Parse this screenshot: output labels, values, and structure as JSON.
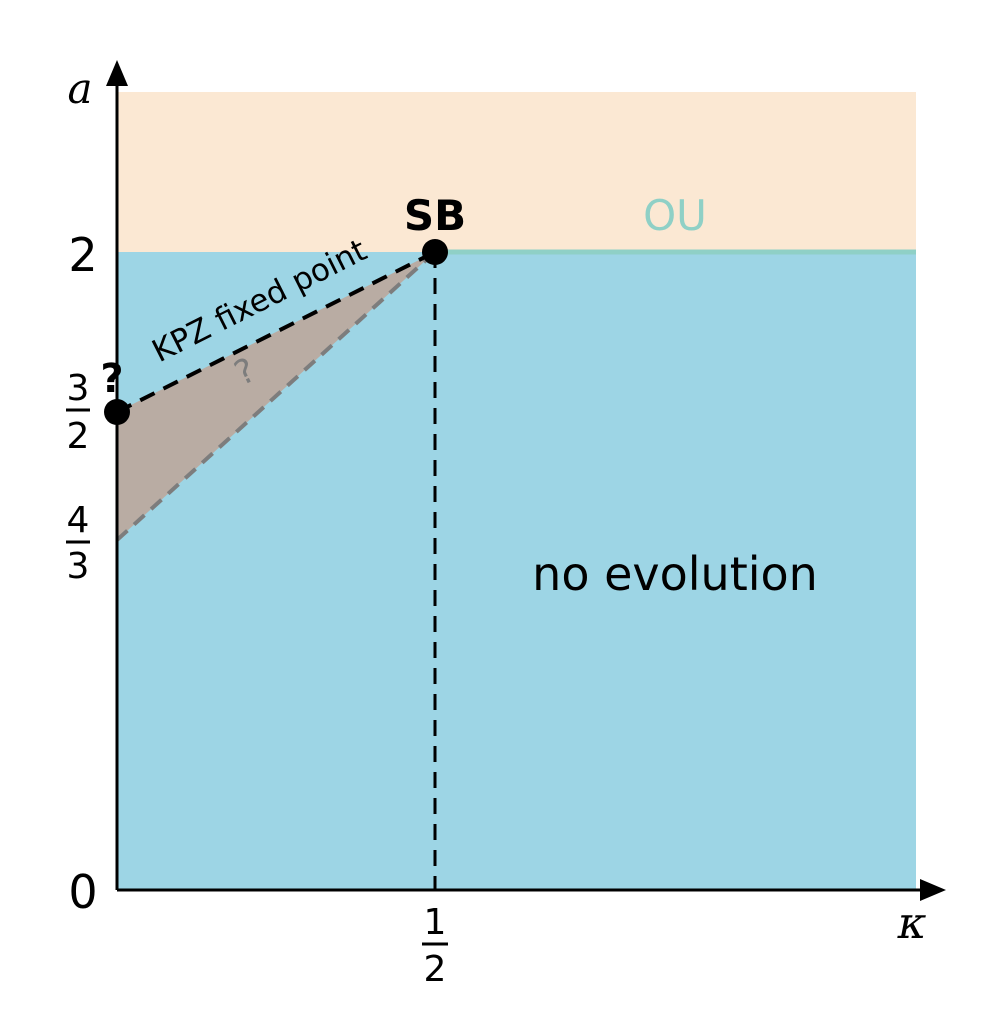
{
  "axes": {
    "y_label": "a",
    "x_label": "κ",
    "origin_label": "0",
    "y_tick_2": "2",
    "y_tick_three_halves": {
      "num": "3",
      "den": "2"
    },
    "y_tick_four_thirds": {
      "num": "4",
      "den": "3"
    },
    "x_tick_half": {
      "num": "1",
      "den": "2"
    }
  },
  "regions": {
    "top": {
      "color": "#fbe8d3"
    },
    "bottom": {
      "label": "no evolution",
      "color": "#9dd5e5"
    },
    "wedge": {
      "label": "?",
      "color": "#b9aca3"
    }
  },
  "lines": {
    "kpz": {
      "label": "KPZ fixed point"
    },
    "ou": {
      "label": "OU",
      "color": "#8fd0c6"
    }
  },
  "points": {
    "sb": {
      "label": "SB"
    },
    "left": {
      "label": "?"
    }
  }
}
